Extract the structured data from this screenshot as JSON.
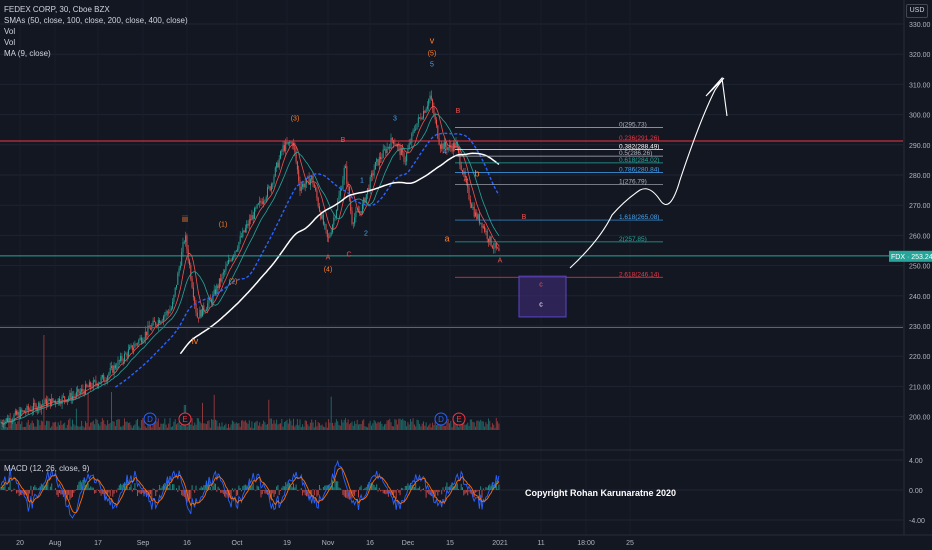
{
  "legend": {
    "title": "FEDEX CORP, 30, Cboe BZX",
    "smas": "SMAs (50, close, 100, close, 200, close, 400, close)",
    "vol1": "Vol",
    "vol2": "Vol",
    "ma": "MA (9, close)"
  },
  "macd_legend": "MACD (12, 26, close, 9)",
  "currency": "USD",
  "watermark": "Copyright Rohan Karunaratne 2020",
  "price_tag": "FDX · 253.24",
  "colors": {
    "background": "#131722",
    "up": "#26a69a",
    "down": "#ef5350",
    "red_line": "#f23645",
    "blue_line": "#2962ff",
    "fib_text": "#b2b5be",
    "wave_orange": "#ff7f2a",
    "wave_blue": "#42a5f5",
    "zone_fill": "#3b2a6b"
  },
  "chart_data": {
    "type": "candlestick",
    "symbol": "FDX",
    "timeframe": "30",
    "y_axis_price": {
      "ticks": [
        200,
        210,
        220,
        230,
        240,
        250,
        260,
        270,
        280,
        290,
        300,
        310,
        320,
        330
      ],
      "labels": [
        "200.00",
        "210.00",
        "220.00",
        "230.00",
        "240.00",
        "250.00",
        "260.00",
        "270.00",
        "280.00",
        "290.00",
        "300.00",
        "310.00",
        "320.00",
        "330.00"
      ]
    },
    "y_axis_macd": {
      "ticks": [
        4,
        0,
        -4
      ],
      "labels": [
        "4.00",
        "0.00",
        "-4.00"
      ]
    },
    "x_axis": {
      "labels": [
        "20",
        "Aug",
        "17",
        "Sep",
        "16",
        "Oct",
        "19",
        "Nov",
        "16",
        "Dec",
        "15",
        "2021",
        "11",
        "18:00",
        "25"
      ]
    },
    "price_anchors": [
      [
        0,
        198
      ],
      [
        40,
        204
      ],
      [
        75,
        207
      ],
      [
        105,
        213
      ],
      [
        130,
        222
      ],
      [
        152,
        230
      ],
      [
        172,
        236
      ],
      [
        185,
        260
      ],
      [
        197,
        233
      ],
      [
        212,
        239
      ],
      [
        230,
        252
      ],
      [
        250,
        265
      ],
      [
        270,
        276
      ],
      [
        283,
        289
      ],
      [
        293,
        291
      ],
      [
        300,
        276
      ],
      [
        312,
        279
      ],
      [
        320,
        268
      ],
      [
        328,
        258
      ],
      [
        340,
        274
      ],
      [
        345,
        283
      ],
      [
        352,
        265
      ],
      [
        362,
        269
      ],
      [
        375,
        283
      ],
      [
        393,
        292
      ],
      [
        405,
        285
      ],
      [
        415,
        296
      ],
      [
        425,
        302
      ],
      [
        430,
        306
      ],
      [
        440,
        290
      ],
      [
        450,
        289
      ],
      [
        456,
        290
      ],
      [
        462,
        282
      ],
      [
        468,
        274
      ],
      [
        475,
        267
      ],
      [
        482,
        264
      ],
      [
        490,
        258
      ],
      [
        497,
        255
      ],
      [
        501,
        253
      ]
    ],
    "current_price": 253.24,
    "horizontal_levels": [
      {
        "price": 291.26,
        "color": "red"
      },
      {
        "price": 253.2,
        "color": "teal"
      },
      {
        "price": 229.5,
        "color": "blue"
      }
    ],
    "fibonacci": [
      {
        "label": "0(295.73)",
        "price": 295.73
      },
      {
        "label": "0.236(291.26)",
        "price": 291.26
      },
      {
        "label": "0.382(288.49)",
        "price": 288.49
      },
      {
        "label": "0.5(286.26)",
        "price": 286.26
      },
      {
        "label": "0.618(284.02)",
        "price": 284.02
      },
      {
        "label": "0.786(280.84)",
        "price": 280.84
      },
      {
        "label": "1(276.79)",
        "price": 276.79
      },
      {
        "label": "1.618(265.08)",
        "price": 265.08
      },
      {
        "label": "2(257.85)",
        "price": 257.85
      },
      {
        "label": "2.618(246.14)",
        "price": 246.14
      }
    ],
    "wave_labels": [
      {
        "text": "v",
        "price": 323.5,
        "color": "orange"
      },
      {
        "text": "(5)",
        "price": 319.5,
        "color": "orange"
      },
      {
        "text": "5",
        "price": 316,
        "color": "blue"
      },
      {
        "text": "(3)",
        "price": 298,
        "color": "orange"
      },
      {
        "text": "3",
        "price": 298,
        "color": "blue"
      },
      {
        "text": "B",
        "price": 291,
        "color": "red"
      },
      {
        "text": "B",
        "price": 300.5,
        "color": "red"
      },
      {
        "text": "(1)",
        "price": 263,
        "color": "orange"
      },
      {
        "text": "iii",
        "price": 264.5,
        "color": "orange"
      },
      {
        "text": "(2)",
        "price": 244,
        "color": "orange"
      },
      {
        "text": "iv",
        "price": 224,
        "color": "orange"
      },
      {
        "text": "A",
        "price": 252,
        "color": "red"
      },
      {
        "text": "C",
        "price": 253,
        "color": "red"
      },
      {
        "text": "(4)",
        "price": 248,
        "color": "orange"
      },
      {
        "text": "1",
        "price": 277.5,
        "color": "blue"
      },
      {
        "text": "2",
        "price": 260,
        "color": "blue"
      },
      {
        "text": "4",
        "price": 287,
        "color": "blue"
      },
      {
        "text": "b",
        "price": 279.5,
        "color": "orange"
      },
      {
        "text": "a",
        "price": 258,
        "color": "orange"
      },
      {
        "text": "A",
        "price": 278,
        "color": "red"
      },
      {
        "text": "A",
        "price": 251,
        "color": "red"
      },
      {
        "text": "B",
        "price": 265.5,
        "color": "red"
      },
      {
        "text": "c",
        "price": 243,
        "color": "red"
      },
      {
        "text": "c",
        "price": 236.5,
        "color": "white"
      }
    ],
    "event_markers": [
      {
        "text": "D",
        "type": "dividend"
      },
      {
        "text": "E",
        "type": "earnings"
      },
      {
        "text": "D",
        "type": "dividend"
      },
      {
        "text": "E",
        "type": "earnings"
      }
    ]
  }
}
